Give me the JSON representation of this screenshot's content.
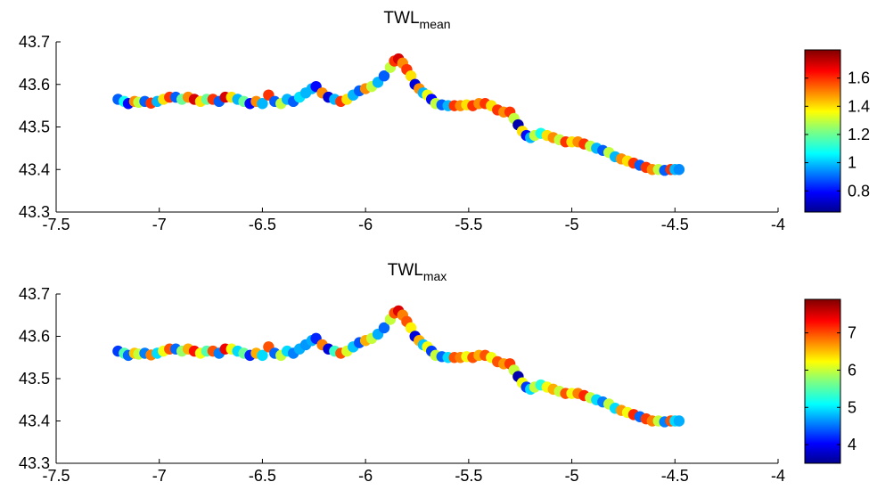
{
  "chart_data": [
    {
      "type": "scatter",
      "title_main": "TWL",
      "title_sub": "mean",
      "xlim": [
        -7.5,
        -4
      ],
      "ylim": [
        43.3,
        43.7
      ],
      "xticks": [
        "-7.5",
        "-7",
        "-6.5",
        "-6",
        "-5.5",
        "-5",
        "-4.5",
        "-4"
      ],
      "xtick_values": [
        -7.5,
        -7,
        -6.5,
        -6,
        -5.5,
        -5,
        -4.5,
        -4
      ],
      "yticks": [
        "43.3",
        "43.4",
        "43.5",
        "43.6",
        "43.7"
      ],
      "ytick_values": [
        43.3,
        43.4,
        43.5,
        43.6,
        43.7
      ],
      "colorbar": {
        "colormap": "jet",
        "range": [
          0.65,
          1.8
        ],
        "ticks": [
          "0.8",
          "1",
          "1.2",
          "1.4",
          "1.6"
        ],
        "tick_values": [
          0.8,
          1.0,
          1.2,
          1.4,
          1.6
        ]
      },
      "points": [
        [
          -7.2,
          43.565,
          0.9
        ],
        [
          -7.17,
          43.56,
          1.1
        ],
        [
          -7.15,
          43.555,
          0.8
        ],
        [
          -7.12,
          43.56,
          1.5
        ],
        [
          -7.1,
          43.558,
          1.3
        ],
        [
          -7.07,
          43.56,
          0.9
        ],
        [
          -7.04,
          43.556,
          1.6
        ],
        [
          -7.01,
          43.56,
          1.0
        ],
        [
          -6.98,
          43.565,
          1.4
        ],
        [
          -6.95,
          43.57,
          1.6
        ],
        [
          -6.92,
          43.57,
          0.9
        ],
        [
          -6.89,
          43.565,
          1.2
        ],
        [
          -6.86,
          43.57,
          1.5
        ],
        [
          -6.83,
          43.565,
          1.7
        ],
        [
          -6.8,
          43.56,
          1.4
        ],
        [
          -6.77,
          43.565,
          1.2
        ],
        [
          -6.74,
          43.565,
          1.6
        ],
        [
          -6.71,
          43.56,
          0.9
        ],
        [
          -6.68,
          43.57,
          1.7
        ],
        [
          -6.65,
          43.57,
          1.4
        ],
        [
          -6.62,
          43.565,
          1.0
        ],
        [
          -6.59,
          43.56,
          1.2
        ],
        [
          -6.56,
          43.555,
          0.8
        ],
        [
          -6.53,
          43.56,
          1.5
        ],
        [
          -6.5,
          43.555,
          1.0
        ],
        [
          -6.47,
          43.575,
          1.6
        ],
        [
          -6.44,
          43.56,
          0.9
        ],
        [
          -6.41,
          43.555,
          1.3
        ],
        [
          -6.38,
          43.565,
          1.0
        ],
        [
          -6.35,
          43.56,
          0.9
        ],
        [
          -6.32,
          43.57,
          1.05
        ],
        [
          -6.29,
          43.58,
          1.0
        ],
        [
          -6.26,
          43.59,
          1.0
        ],
        [
          -6.24,
          43.595,
          0.8
        ],
        [
          -6.21,
          43.58,
          1.5
        ],
        [
          -6.18,
          43.57,
          0.75
        ],
        [
          -6.15,
          43.565,
          1.0
        ],
        [
          -6.12,
          43.56,
          1.6
        ],
        [
          -6.09,
          43.565,
          1.4
        ],
        [
          -6.06,
          43.575,
          1.0
        ],
        [
          -6.03,
          43.585,
          0.9
        ],
        [
          -6.0,
          43.59,
          1.5
        ],
        [
          -5.97,
          43.595,
          1.3
        ],
        [
          -5.94,
          43.605,
          1.0
        ],
        [
          -5.91,
          43.62,
          0.9
        ],
        [
          -5.88,
          43.64,
          1.3
        ],
        [
          -5.86,
          43.655,
          1.6
        ],
        [
          -5.84,
          43.66,
          1.7
        ],
        [
          -5.82,
          43.65,
          1.5
        ],
        [
          -5.8,
          43.635,
          1.6
        ],
        [
          -5.78,
          43.62,
          1.4
        ],
        [
          -5.76,
          43.6,
          0.75
        ],
        [
          -5.74,
          43.59,
          1.5
        ],
        [
          -5.72,
          43.58,
          1.0
        ],
        [
          -5.7,
          43.575,
          1.35
        ],
        [
          -5.68,
          43.565,
          0.8
        ],
        [
          -5.66,
          43.555,
          1.3
        ],
        [
          -5.63,
          43.552,
          0.9
        ],
        [
          -5.6,
          43.55,
          1.0
        ],
        [
          -5.57,
          43.55,
          1.6
        ],
        [
          -5.54,
          43.55,
          1.5
        ],
        [
          -5.51,
          43.552,
          1.4
        ],
        [
          -5.48,
          43.55,
          1.6
        ],
        [
          -5.45,
          43.555,
          1.5
        ],
        [
          -5.42,
          43.555,
          1.6
        ],
        [
          -5.39,
          43.55,
          1.4
        ],
        [
          -5.36,
          43.54,
          1.6
        ],
        [
          -5.33,
          43.535,
          1.5
        ],
        [
          -5.3,
          43.535,
          1.6
        ],
        [
          -5.28,
          43.52,
          1.3
        ],
        [
          -5.26,
          43.505,
          0.7
        ],
        [
          -5.24,
          43.49,
          1.4
        ],
        [
          -5.22,
          43.48,
          0.8
        ],
        [
          -5.2,
          43.475,
          1.0
        ],
        [
          -5.18,
          43.48,
          1.3
        ],
        [
          -5.15,
          43.485,
          1.1
        ],
        [
          -5.12,
          43.48,
          1.4
        ],
        [
          -5.09,
          43.475,
          1.5
        ],
        [
          -5.06,
          43.47,
          1.3
        ],
        [
          -5.03,
          43.465,
          1.6
        ],
        [
          -5.0,
          43.465,
          1.4
        ],
        [
          -4.97,
          43.465,
          1.5
        ],
        [
          -4.94,
          43.46,
          1.6
        ],
        [
          -4.91,
          43.455,
          1.3
        ],
        [
          -4.88,
          43.45,
          1.0
        ],
        [
          -4.85,
          43.445,
          0.9
        ],
        [
          -4.82,
          43.44,
          1.3
        ],
        [
          -4.79,
          43.43,
          1.0
        ],
        [
          -4.76,
          43.425,
          1.5
        ],
        [
          -4.73,
          43.42,
          1.4
        ],
        [
          -4.7,
          43.415,
          1.6
        ],
        [
          -4.67,
          43.41,
          0.9
        ],
        [
          -4.64,
          43.405,
          1.6
        ],
        [
          -4.61,
          43.4,
          1.5
        ],
        [
          -4.58,
          43.4,
          1.3
        ],
        [
          -4.55,
          43.398,
          0.9
        ],
        [
          -4.52,
          43.4,
          1.6
        ],
        [
          -4.5,
          43.4,
          1.0
        ],
        [
          -4.48,
          43.4,
          0.95
        ]
      ]
    },
    {
      "type": "scatter",
      "title_main": "TWL",
      "title_sub": "max",
      "xlim": [
        -7.5,
        -4
      ],
      "ylim": [
        43.3,
        43.7
      ],
      "xticks": [
        "-7.5",
        "-7",
        "-6.5",
        "-6",
        "-5.5",
        "-5",
        "-4.5",
        "-4"
      ],
      "xtick_values": [
        -7.5,
        -7,
        -6.5,
        -6,
        -5.5,
        -5,
        -4.5,
        -4
      ],
      "yticks": [
        "43.3",
        "43.4",
        "43.5",
        "43.6",
        "43.7"
      ],
      "ytick_values": [
        43.3,
        43.4,
        43.5,
        43.6,
        43.7
      ],
      "colorbar": {
        "colormap": "jet",
        "range": [
          3.5,
          7.9
        ],
        "ticks": [
          "4",
          "5",
          "6",
          "7"
        ],
        "tick_values": [
          4,
          5,
          6,
          7
        ]
      },
      "points": [
        [
          -7.2,
          43.565,
          4.3
        ],
        [
          -7.17,
          43.56,
          5.5
        ],
        [
          -7.15,
          43.555,
          4.5
        ],
        [
          -7.12,
          43.56,
          6.5
        ],
        [
          -7.1,
          43.558,
          6.0
        ],
        [
          -7.07,
          43.56,
          4.6
        ],
        [
          -7.04,
          43.556,
          6.8
        ],
        [
          -7.01,
          43.56,
          5.0
        ],
        [
          -6.98,
          43.565,
          6.2
        ],
        [
          -6.95,
          43.57,
          7.0
        ],
        [
          -6.92,
          43.57,
          4.5
        ],
        [
          -6.89,
          43.565,
          5.8
        ],
        [
          -6.86,
          43.57,
          6.6
        ],
        [
          -6.83,
          43.565,
          7.3
        ],
        [
          -6.8,
          43.56,
          6.2
        ],
        [
          -6.77,
          43.565,
          5.5
        ],
        [
          -6.74,
          43.565,
          7.0
        ],
        [
          -6.71,
          43.56,
          4.6
        ],
        [
          -6.68,
          43.57,
          7.4
        ],
        [
          -6.65,
          43.57,
          6.2
        ],
        [
          -6.62,
          43.565,
          5.0
        ],
        [
          -6.59,
          43.56,
          5.6
        ],
        [
          -6.56,
          43.555,
          4.2
        ],
        [
          -6.53,
          43.56,
          6.6
        ],
        [
          -6.5,
          43.555,
          5.0
        ],
        [
          -6.47,
          43.575,
          7.0
        ],
        [
          -6.44,
          43.56,
          4.5
        ],
        [
          -6.41,
          43.555,
          6.0
        ],
        [
          -6.38,
          43.565,
          5.0
        ],
        [
          -6.35,
          43.56,
          4.6
        ],
        [
          -6.32,
          43.57,
          4.8
        ],
        [
          -6.29,
          43.58,
          4.7
        ],
        [
          -6.26,
          43.59,
          4.8
        ],
        [
          -6.24,
          43.595,
          4.2
        ],
        [
          -6.21,
          43.58,
          6.8
        ],
        [
          -6.18,
          43.57,
          3.9
        ],
        [
          -6.15,
          43.565,
          5.4
        ],
        [
          -6.12,
          43.56,
          7.0
        ],
        [
          -6.09,
          43.565,
          6.1
        ],
        [
          -6.06,
          43.575,
          4.9
        ],
        [
          -6.03,
          43.585,
          4.4
        ],
        [
          -6.0,
          43.59,
          6.6
        ],
        [
          -5.97,
          43.595,
          6.0
        ],
        [
          -5.94,
          43.605,
          4.8
        ],
        [
          -5.91,
          43.62,
          4.5
        ],
        [
          -5.88,
          43.64,
          6.0
        ],
        [
          -5.86,
          43.655,
          7.0
        ],
        [
          -5.84,
          43.66,
          7.5
        ],
        [
          -5.82,
          43.65,
          6.8
        ],
        [
          -5.8,
          43.635,
          7.0
        ],
        [
          -5.78,
          43.62,
          6.3
        ],
        [
          -5.76,
          43.6,
          3.9
        ],
        [
          -5.74,
          43.59,
          6.6
        ],
        [
          -5.72,
          43.58,
          4.9
        ],
        [
          -5.7,
          43.575,
          6.2
        ],
        [
          -5.68,
          43.565,
          4.3
        ],
        [
          -5.66,
          43.555,
          6.0
        ],
        [
          -5.63,
          43.552,
          4.5
        ],
        [
          -5.6,
          43.55,
          5.0
        ],
        [
          -5.57,
          43.55,
          7.0
        ],
        [
          -5.54,
          43.55,
          6.8
        ],
        [
          -5.51,
          43.552,
          6.2
        ],
        [
          -5.48,
          43.55,
          7.0
        ],
        [
          -5.45,
          43.555,
          6.6
        ],
        [
          -5.42,
          43.555,
          7.0
        ],
        [
          -5.39,
          43.55,
          6.2
        ],
        [
          -5.36,
          43.54,
          7.0
        ],
        [
          -5.33,
          43.535,
          6.7
        ],
        [
          -5.3,
          43.535,
          7.1
        ],
        [
          -5.28,
          43.52,
          6.0
        ],
        [
          -5.26,
          43.505,
          3.7
        ],
        [
          -5.24,
          43.49,
          6.2
        ],
        [
          -5.22,
          43.48,
          4.3
        ],
        [
          -5.2,
          43.475,
          5.0
        ],
        [
          -5.18,
          43.48,
          6.0
        ],
        [
          -5.15,
          43.485,
          5.3
        ],
        [
          -5.12,
          43.48,
          6.2
        ],
        [
          -5.09,
          43.475,
          6.6
        ],
        [
          -5.06,
          43.47,
          6.0
        ],
        [
          -5.03,
          43.465,
          7.0
        ],
        [
          -5.0,
          43.465,
          6.2
        ],
        [
          -4.97,
          43.465,
          6.8
        ],
        [
          -4.94,
          43.46,
          7.2
        ],
        [
          -4.91,
          43.455,
          6.0
        ],
        [
          -4.88,
          43.45,
          5.0
        ],
        [
          -4.85,
          43.445,
          4.6
        ],
        [
          -4.82,
          43.44,
          6.0
        ],
        [
          -4.79,
          43.43,
          5.0
        ],
        [
          -4.76,
          43.425,
          6.7
        ],
        [
          -4.73,
          43.42,
          6.2
        ],
        [
          -4.7,
          43.415,
          7.2
        ],
        [
          -4.67,
          43.41,
          4.5
        ],
        [
          -4.64,
          43.405,
          7.1
        ],
        [
          -4.61,
          43.4,
          6.8
        ],
        [
          -4.58,
          43.4,
          6.0
        ],
        [
          -4.55,
          43.398,
          4.6
        ],
        [
          -4.52,
          43.4,
          7.0
        ],
        [
          -4.5,
          43.4,
          5.0
        ],
        [
          -4.48,
          43.4,
          4.8
        ]
      ]
    }
  ]
}
